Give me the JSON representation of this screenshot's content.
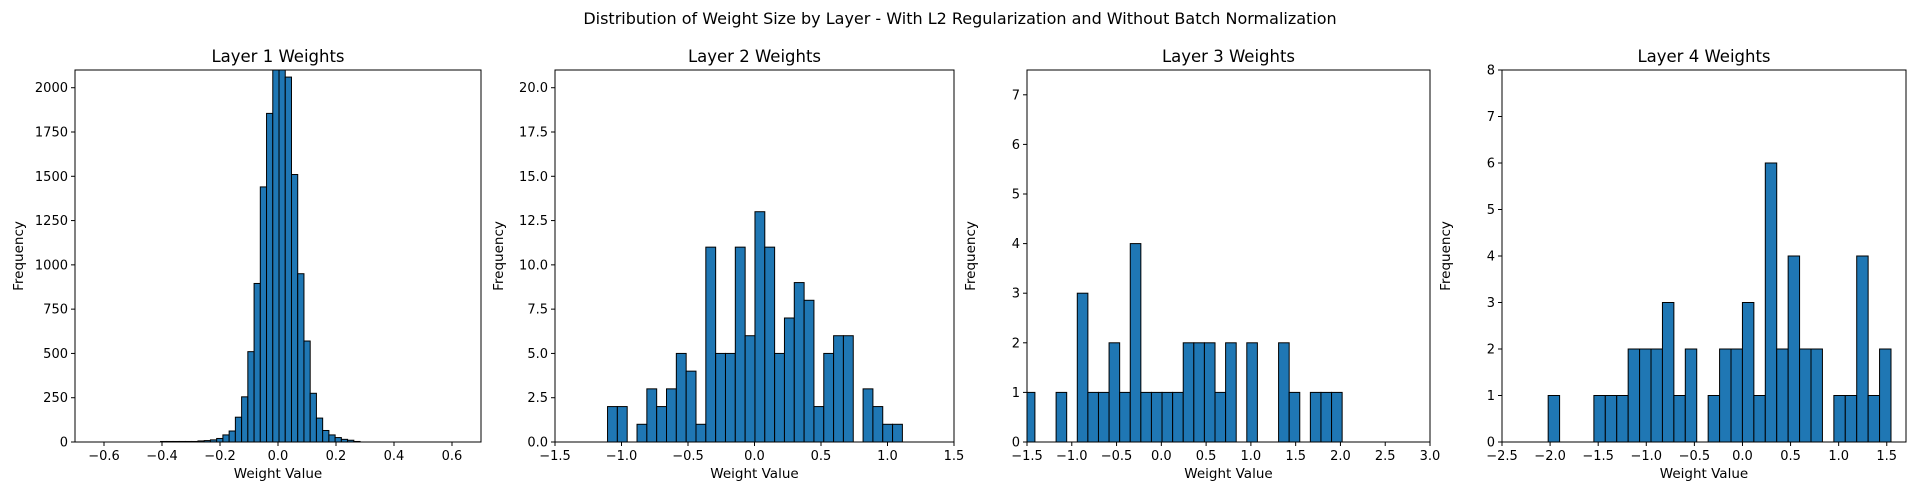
{
  "figure": {
    "suptitle": "Distribution of Weight Size by Layer - With L2 Regularization and Without Batch Normalization",
    "bar_color": "#1f77b4",
    "edge_color": "#000000"
  },
  "chart_data": [
    {
      "type": "bar",
      "title": "Layer 1 Weights",
      "xlabel": "Weight Value",
      "ylabel": "Frequency",
      "xlim": [
        -0.7,
        0.7
      ],
      "ylim": [
        0,
        2100
      ],
      "xticks": [
        -0.6,
        -0.4,
        -0.2,
        0.0,
        0.2,
        0.4,
        0.6
      ],
      "xtick_labels": [
        "−0.6",
        "−0.4",
        "−0.2",
        "0.0",
        "0.2",
        "0.4",
        "0.6"
      ],
      "yticks": [
        0,
        250,
        500,
        750,
        1000,
        1250,
        1500,
        1750,
        2000
      ],
      "ytick_labels": [
        "0",
        "250",
        "500",
        "750",
        "1000",
        "1250",
        "1500",
        "1750",
        "2000"
      ],
      "bin_width": 0.0215,
      "bin_starts": [
        -0.405,
        -0.3835,
        -0.362,
        -0.3405,
        -0.319,
        -0.2975,
        -0.276,
        -0.2545,
        -0.233,
        -0.2115,
        -0.19,
        -0.1685,
        -0.147,
        -0.1255,
        -0.104,
        -0.0825,
        -0.061,
        -0.0395,
        -0.018,
        0.0035,
        0.025,
        0.0465,
        0.068,
        0.0895,
        0.111,
        0.1325,
        0.154,
        0.1755,
        0.197,
        0.2185,
        0.24,
        0.2615
      ],
      "values": [
        3,
        3,
        3,
        3,
        3,
        3,
        6,
        8,
        12,
        20,
        40,
        62,
        140,
        255,
        510,
        895,
        1440,
        1855,
        2160,
        2165,
        2060,
        1510,
        950,
        570,
        275,
        135,
        65,
        40,
        25,
        15,
        10,
        3
      ]
    },
    {
      "type": "bar",
      "title": "Layer 2 Weights",
      "xlabel": "Weight Value",
      "ylabel": "Frequency",
      "xlim": [
        -1.5,
        1.5
      ],
      "ylim": [
        0,
        21
      ],
      "xticks": [
        -1.5,
        -1.0,
        -0.5,
        0.0,
        0.5,
        1.0,
        1.5
      ],
      "xtick_labels": [
        "−1.5",
        "−1.0",
        "−0.5",
        "0.0",
        "0.5",
        "1.0",
        "1.5"
      ],
      "yticks": [
        0,
        2.5,
        5,
        7.5,
        10,
        12.5,
        15,
        17.5,
        20
      ],
      "ytick_labels": [
        "0.0",
        "2.5",
        "5.0",
        "7.5",
        "10.0",
        "12.5",
        "15.0",
        "17.5",
        "20.0"
      ],
      "bin_width": 0.0739,
      "bin_starts": [
        -1.105,
        -1.0311,
        -0.9572,
        -0.8833,
        -0.8094,
        -0.7355,
        -0.6616,
        -0.5877,
        -0.5138,
        -0.4399,
        -0.366,
        -0.2921,
        -0.2182,
        -0.1443,
        -0.0704,
        0.0035,
        0.0774,
        0.1513,
        0.2252,
        0.2991,
        0.373,
        0.4469,
        0.5208,
        0.5947,
        0.6686,
        0.7425,
        0.8164,
        0.8903,
        0.9642,
        1.0381
      ],
      "values": [
        2,
        2,
        0,
        1,
        3,
        2,
        3,
        5,
        4,
        1,
        11,
        5,
        5,
        11,
        6,
        13,
        11,
        5,
        7,
        9,
        8,
        2,
        5,
        6,
        6,
        0,
        3,
        2,
        1,
        1
      ]
    },
    {
      "type": "bar",
      "title": "Layer 3 Weights",
      "xlabel": "Weight Value",
      "ylabel": "Frequency",
      "xlim": [
        -1.5,
        3.0
      ],
      "ylim": [
        0,
        7.5
      ],
      "xticks": [
        -1.5,
        -1.0,
        -0.5,
        0.0,
        0.5,
        1.0,
        1.5,
        2.0,
        2.5,
        3.0
      ],
      "xtick_labels": [
        "−1.5",
        "−1.0",
        "−0.5",
        "0.0",
        "0.5",
        "1.0",
        "1.5",
        "2.0",
        "2.5",
        "3.0"
      ],
      "yticks": [
        0,
        1,
        2,
        3,
        4,
        5,
        6,
        7
      ],
      "ytick_labels": [
        "0",
        "1",
        "2",
        "3",
        "4",
        "5",
        "6",
        "7"
      ],
      "bin_width": 0.1183,
      "bin_starts": [
        -1.53,
        -1.4117,
        -1.2934,
        -1.1751,
        -1.0568,
        -0.9385,
        -0.8202,
        -0.7019,
        -0.5836,
        -0.4653,
        -0.347,
        -0.2287,
        -0.1104,
        0.0079,
        0.1262,
        0.2445,
        0.3628,
        0.4811,
        0.5994,
        0.7177,
        0.836,
        0.9543,
        1.0726,
        1.1909,
        1.3092,
        1.4275,
        1.5458,
        1.6641,
        1.7824,
        1.9007
      ],
      "values": [
        1,
        0,
        0,
        1,
        0,
        3,
        1,
        1,
        2,
        1,
        4,
        1,
        1,
        1,
        1,
        2,
        2,
        2,
        1,
        2,
        0,
        2,
        0,
        0,
        2,
        1,
        0,
        1,
        1,
        1
      ]
    },
    {
      "type": "bar",
      "title": "Layer 4 Weights",
      "xlabel": "Weight Value",
      "ylabel": "Frequency",
      "xlim": [
        -2.5,
        1.7
      ],
      "ylim": [
        0,
        8
      ],
      "xticks": [
        -2.5,
        -2.0,
        -1.5,
        -1.0,
        -0.5,
        0.0,
        0.5,
        1.0,
        1.5
      ],
      "xtick_labels": [
        "−2.5",
        "−2.0",
        "−1.5",
        "−1.0",
        "−0.5",
        "0.0",
        "0.5",
        "1.0",
        "1.5"
      ],
      "yticks": [
        0,
        1,
        2,
        3,
        4,
        5,
        6,
        7,
        8
      ],
      "ytick_labels": [
        "0",
        "1",
        "2",
        "3",
        "4",
        "5",
        "6",
        "7",
        "8"
      ],
      "bin_width": 0.1188,
      "bin_starts": [
        -2.02,
        -1.9012,
        -1.7824,
        -1.6636,
        -1.5448,
        -1.426,
        -1.3072,
        -1.1884,
        -1.0696,
        -0.9508,
        -0.832,
        -0.7132,
        -0.5944,
        -0.4756,
        -0.3568,
        -0.238,
        -0.1192,
        -0.0004,
        0.1184,
        0.2372,
        0.356,
        0.4748,
        0.5936,
        0.7124,
        0.8312,
        0.95,
        1.0688,
        1.1876,
        1.3064,
        1.4252
      ],
      "values": [
        1,
        0,
        0,
        0,
        1,
        1,
        1,
        2,
        2,
        2,
        3,
        1,
        2,
        0,
        1,
        2,
        2,
        3,
        1,
        6,
        2,
        4,
        2,
        2,
        0,
        1,
        1,
        4,
        1,
        2
      ]
    }
  ]
}
